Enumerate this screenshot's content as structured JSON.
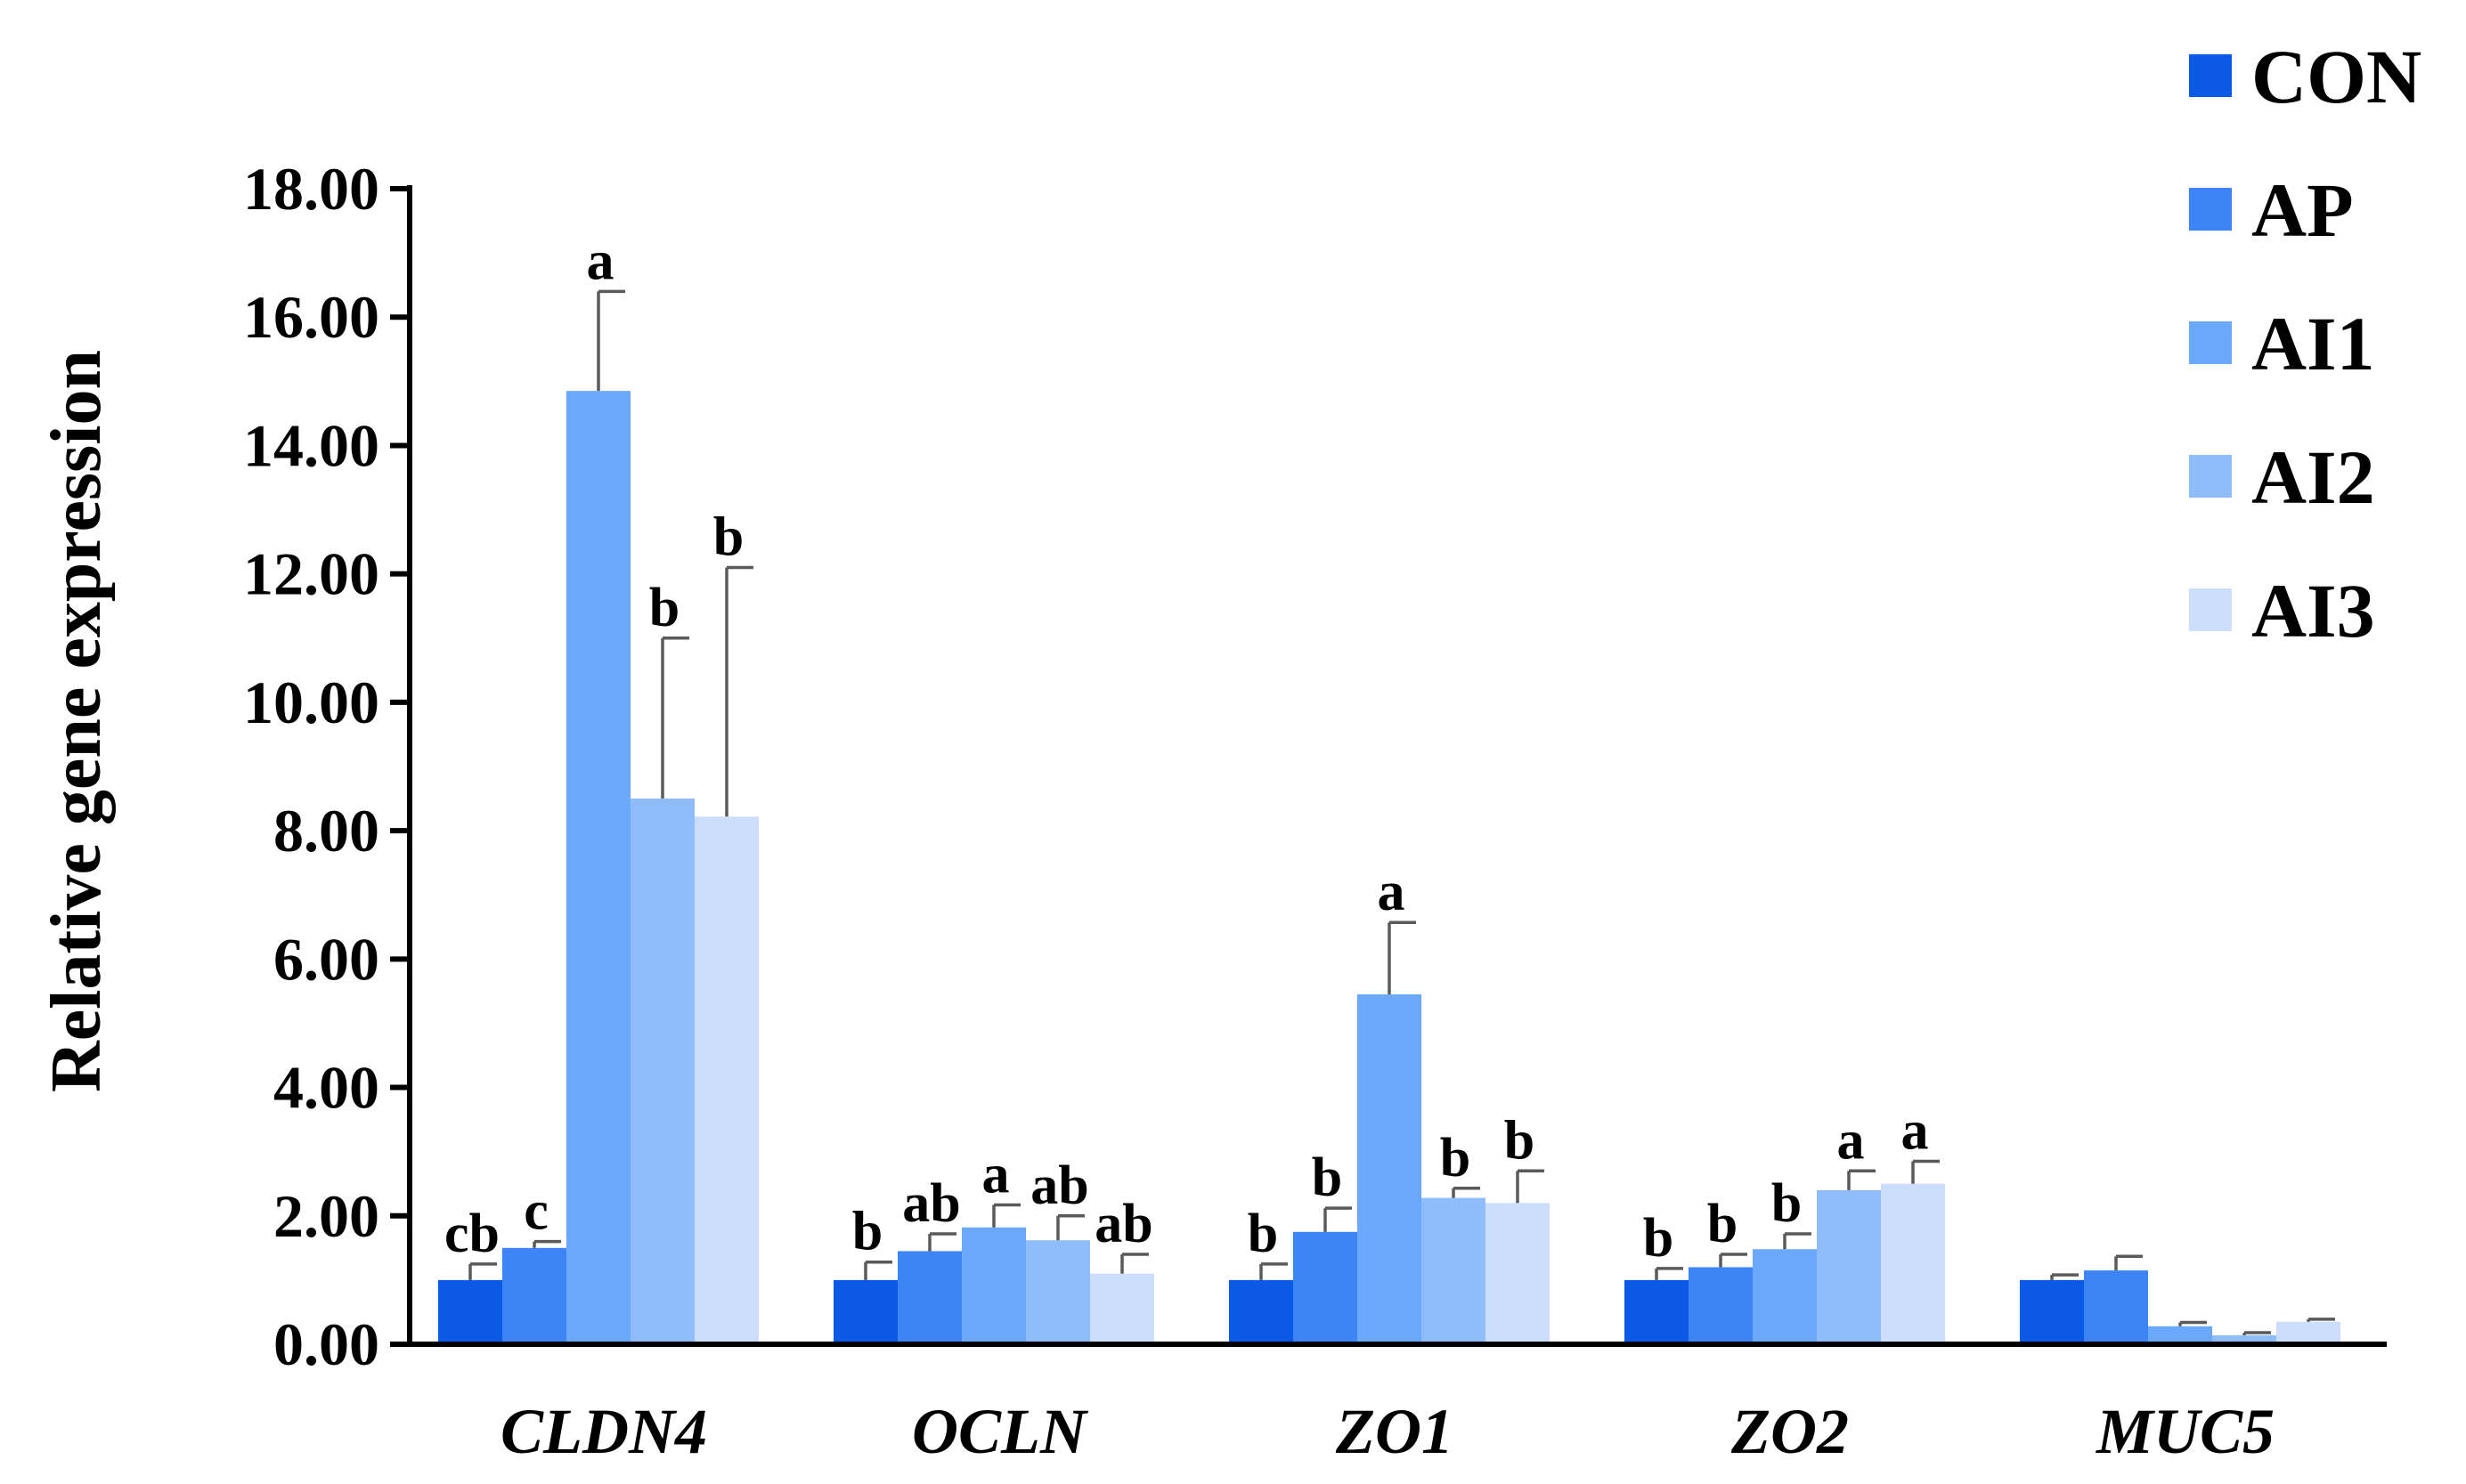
{
  "chart_data": {
    "type": "bar",
    "title": "",
    "xlabel": "",
    "ylabel": "Relative gene expression",
    "ylim": [
      0,
      18
    ],
    "yticks": [
      "0.00",
      "2.00",
      "4.00",
      "6.00",
      "8.00",
      "10.00",
      "12.00",
      "14.00",
      "16.00",
      "18.00"
    ],
    "ytick_values": [
      0,
      2,
      4,
      6,
      8,
      10,
      12,
      14,
      16,
      18
    ],
    "categories": [
      "CLDN4",
      "OCLN",
      "ZO1",
      "ZO2",
      "MUC5"
    ],
    "legend_position": "top-right",
    "grid": false,
    "series": [
      {
        "name": "CON",
        "color": "#0a5ae6",
        "values": [
          1.0,
          1.0,
          1.0,
          1.0,
          1.0
        ],
        "errors": [
          0.25,
          0.28,
          0.25,
          0.18,
          0.08
        ],
        "labels": [
          "cb",
          "b",
          "b",
          "b",
          ""
        ]
      },
      {
        "name": "AP",
        "color": "#3d85f7",
        "values": [
          1.5,
          1.45,
          1.75,
          1.2,
          1.15
        ],
        "errors": [
          0.1,
          0.27,
          0.37,
          0.2,
          0.22
        ],
        "labels": [
          "c",
          "ab",
          "b",
          "b",
          ""
        ]
      },
      {
        "name": "AI1",
        "color": "#6aa8fb",
        "values": [
          14.85,
          1.82,
          5.45,
          1.48,
          0.28
        ],
        "errors": [
          1.55,
          0.35,
          1.12,
          0.24,
          0.06
        ],
        "labels": [
          "a",
          "a",
          "a",
          "b",
          ""
        ]
      },
      {
        "name": "AI2",
        "color": "#8fbcfb",
        "values": [
          8.5,
          1.62,
          2.28,
          2.4,
          0.14
        ],
        "errors": [
          2.5,
          0.38,
          0.15,
          0.3,
          0.04
        ],
        "labels": [
          "b",
          "ab",
          "b",
          "a",
          ""
        ]
      },
      {
        "name": "AI3",
        "color": "#cddefc",
        "values": [
          8.22,
          1.1,
          2.2,
          2.5,
          0.35
        ],
        "errors": [
          3.88,
          0.3,
          0.5,
          0.35,
          0.04
        ],
        "labels": [
          "b",
          "ab",
          "b",
          "a",
          ""
        ]
      }
    ]
  }
}
